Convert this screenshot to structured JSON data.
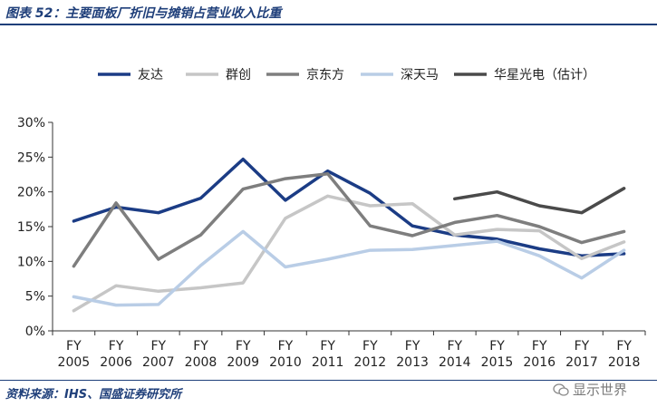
{
  "title": "图表 52：主要面板厂折旧与摊销占营业收入比重",
  "source": "资料来源：IHS、国盛证券研究所",
  "watermark": "显示世界",
  "chart_data": {
    "type": "line",
    "categories": [
      "2005",
      "2006",
      "2007",
      "2008",
      "2009",
      "2010",
      "2011",
      "2012",
      "2013",
      "2014",
      "2015",
      "2016",
      "2017",
      "2018"
    ],
    "x_prefix": "FY",
    "ylim": [
      0,
      30
    ],
    "yticks": [
      0,
      5,
      10,
      15,
      20,
      25,
      30
    ],
    "ytick_labels": [
      "0%",
      "5%",
      "10%",
      "15%",
      "20%",
      "25%",
      "30%"
    ],
    "series": [
      {
        "name": "友达",
        "color": "#1b3c85",
        "values": [
          15.8,
          17.8,
          17.0,
          19.1,
          24.7,
          18.8,
          23.0,
          19.8,
          15.1,
          13.8,
          13.2,
          11.8,
          10.8,
          11.1
        ]
      },
      {
        "name": "群创",
        "color": "#c6c6c6",
        "values": [
          2.9,
          6.5,
          5.7,
          6.2,
          6.9,
          16.2,
          19.4,
          18.0,
          18.3,
          13.8,
          14.6,
          14.4,
          10.4,
          12.8
        ]
      },
      {
        "name": "京东方",
        "color": "#7e7e7e",
        "values": [
          9.3,
          18.4,
          10.3,
          13.8,
          20.4,
          21.9,
          22.6,
          15.1,
          13.7,
          15.6,
          16.6,
          15.0,
          12.7,
          14.3
        ]
      },
      {
        "name": "深天马",
        "color": "#b9cde6",
        "values": [
          4.9,
          3.7,
          3.8,
          9.4,
          14.3,
          9.2,
          10.3,
          11.6,
          11.7,
          12.3,
          12.9,
          10.8,
          7.6,
          11.6
        ]
      },
      {
        "name": "华星光电（估计）",
        "color": "#4a4a4a",
        "values": [
          null,
          null,
          null,
          null,
          null,
          null,
          null,
          null,
          null,
          19.0,
          20.0,
          18.0,
          17.0,
          20.5
        ]
      }
    ],
    "legend_position": "top"
  }
}
